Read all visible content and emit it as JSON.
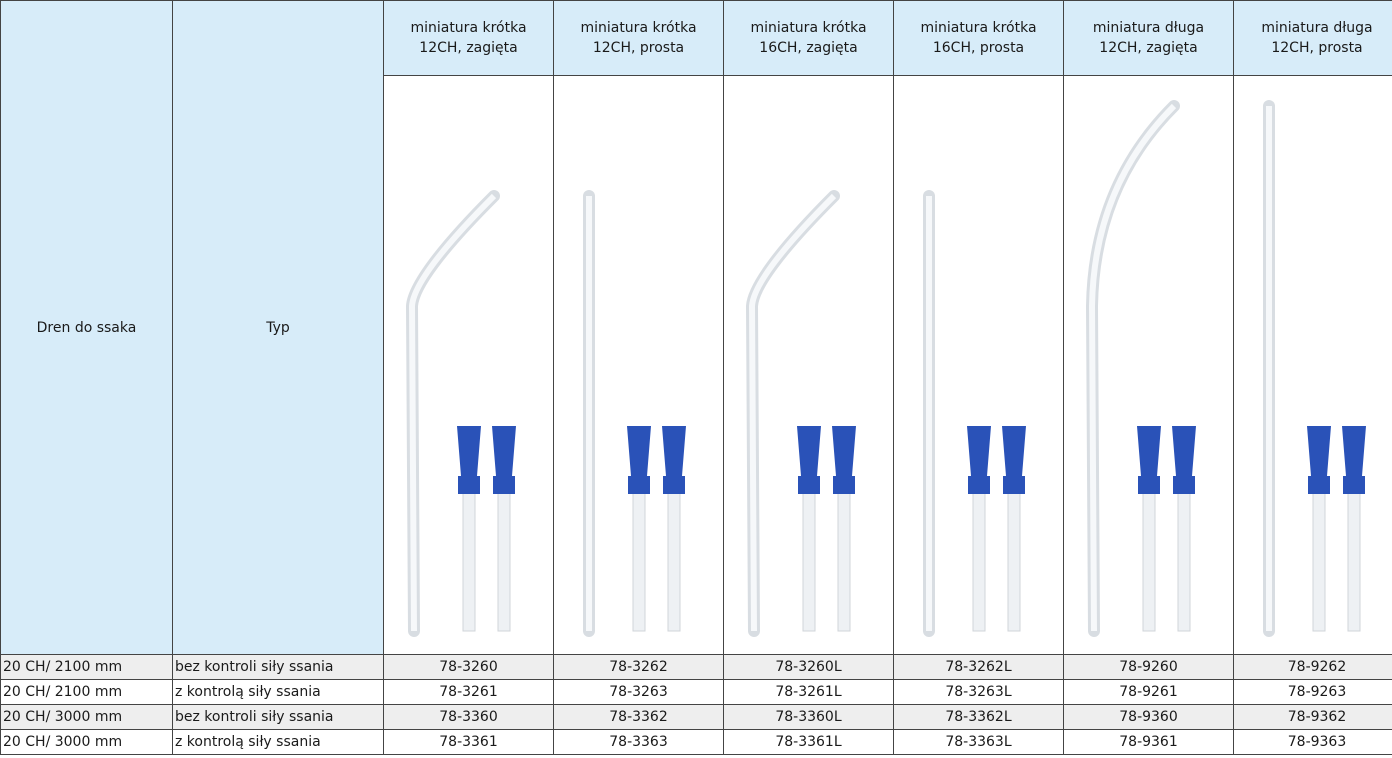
{
  "header": {
    "dren": "Dren do ssaka",
    "typ": "Typ",
    "products": [
      {
        "name": "miniatura krótka",
        "spec": "12CH, zagięta"
      },
      {
        "name": "miniatura krótka",
        "spec": "12CH, prosta"
      },
      {
        "name": "miniatura krótka",
        "spec": "16CH, zagięta"
      },
      {
        "name": "miniatura krótka",
        "spec": "16CH, prosta"
      },
      {
        "name": "miniatura długa",
        "spec": "12CH, zagięta"
      },
      {
        "name": "miniatura długa",
        "spec": "12CH, prosta"
      }
    ]
  },
  "table": {
    "rows": [
      {
        "dren": "20 CH/ 2100 mm",
        "typ": "bez kontroli siły ssania",
        "codes": [
          "78-3260",
          "78-3262",
          "78-3260L",
          "78-3262L",
          "78-9260",
          "78-9262"
        ]
      },
      {
        "dren": "20 CH/ 2100 mm",
        "typ": "z kontrolą siły ssania",
        "codes": [
          "78-3261",
          "78-3263",
          "78-3261L",
          "78-3263L",
          "78-9261",
          "78-9263"
        ]
      },
      {
        "dren": "20 CH/ 3000 mm",
        "typ": "bez kontroli siły ssania",
        "codes": [
          "78-3360",
          "78-3362",
          "78-3360L",
          "78-3362L",
          "78-9360",
          "78-9362"
        ]
      },
      {
        "dren": "20 CH/ 3000 mm",
        "typ": "z kontrolą siły ssania",
        "codes": [
          "78-3361",
          "78-3363",
          "78-3361L",
          "78-3363L",
          "78-9361",
          "78-9363"
        ]
      }
    ]
  }
}
